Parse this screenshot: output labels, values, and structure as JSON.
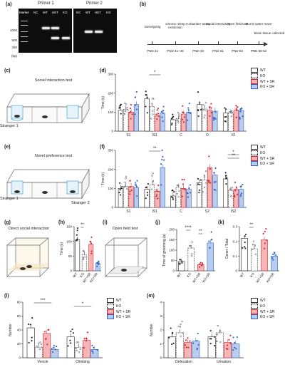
{
  "panel_a": {
    "label": "(a)",
    "primer1": "Primer 1",
    "primer2": "Primer 2",
    "lanes1": [
      "Marker",
      "NC",
      "WT",
      "HET",
      "KO"
    ],
    "lanes2": [
      "NC",
      "WT",
      "HET",
      "KO"
    ],
    "mw": [
      "1000",
      "500",
      "250"
    ],
    "unit": "(bp)"
  },
  "panel_b": {
    "label": "(b)",
    "events": [
      "Genotyping",
      "Chronic sleep restriction",
      "3-chamber assay",
      "Social interaction",
      "Open field test",
      "Morris water maze",
      "Brain tissue collected"
    ],
    "days": [
      "PND 21",
      "PND 21~48",
      "PND 49",
      "PND 51",
      "PND 53",
      "PND 56-62"
    ]
  },
  "panel_c": {
    "label": "(c)",
    "title": "Social interaction test",
    "stranger": "Stranger 1"
  },
  "panel_e": {
    "label": "(e)",
    "title": "Novel preference test",
    "stranger1": "Stranger 1",
    "stranger2": "Stranger 2"
  },
  "panel_g": {
    "label": "(g)",
    "title": "Direct social interaction"
  },
  "panel_i": {
    "label": "(i)",
    "title": "Open field test"
  },
  "legend": [
    "WT",
    "KO",
    "WT + SR",
    "KO + SR"
  ],
  "groups": [
    "WT",
    "KO",
    "WT+SR",
    "KO+SR"
  ],
  "colors": {
    "WT": "#ffffff",
    "KO": "#ffffff",
    "WTSR": "#f4b6b6",
    "KOSR": "#b9ccec",
    "red": "#d9232e",
    "blue": "#2f62c6",
    "black": "#222222"
  },
  "chart_data": [
    {
      "panel": "(d)",
      "type": "bar",
      "ylabel": "Time (s)",
      "ylim": [
        0,
        300
      ],
      "yticks": [
        0,
        100,
        200,
        300
      ],
      "categories": [
        "S1",
        "IS1",
        "C",
        "O",
        "IO"
      ],
      "series": [
        {
          "name": "WT",
          "values": [
            110,
            170,
            60,
            140,
            95
          ]
        },
        {
          "name": "KO",
          "values": [
            115,
            130,
            65,
            120,
            95
          ]
        },
        {
          "name": "WT + SR",
          "values": [
            100,
            80,
            90,
            110,
            110
          ]
        },
        {
          "name": "KO + SR",
          "values": [
            140,
            95,
            100,
            105,
            110
          ]
        }
      ],
      "sig": [
        {
          "cat": 1,
          "text": "*"
        }
      ]
    },
    {
      "panel": "(f)",
      "type": "bar",
      "ylabel": "Time (s)",
      "ylim": [
        0,
        300
      ],
      "yticks": [
        0,
        100,
        200,
        300
      ],
      "categories": [
        "S1",
        "IS1",
        "C",
        "S2",
        "IS2"
      ],
      "series": [
        {
          "name": "WT",
          "values": [
            100,
            95,
            60,
            130,
            150
          ]
        },
        {
          "name": "KO",
          "values": [
            110,
            120,
            105,
            145,
            90
          ]
        },
        {
          "name": "WT + SR",
          "values": [
            110,
            85,
            100,
            210,
            95
          ]
        },
        {
          "name": "KO + SR",
          "values": [
            105,
            210,
            95,
            170,
            95
          ]
        }
      ],
      "sig": [
        {
          "cat": 1,
          "text": "**"
        },
        {
          "cat": 4,
          "text": "*"
        },
        {
          "cat": 4,
          "text": "**"
        }
      ]
    },
    {
      "panel": "(h)",
      "type": "bar",
      "ylabel": "Time (s)",
      "ylim": [
        0,
        150
      ],
      "yticks": [
        0,
        50,
        100,
        150
      ],
      "categories": [
        "WT",
        "KO",
        "WT+SR",
        "KO+SR"
      ],
      "values": [
        105,
        55,
        90,
        25
      ],
      "sig": [
        {
          "text": "**"
        }
      ]
    },
    {
      "panel": "(j)",
      "type": "bar",
      "ylabel": "Time of grooming (s)",
      "ylim": [
        0,
        200
      ],
      "yticks": [
        0,
        50,
        100,
        150,
        200
      ],
      "categories": [
        "WT",
        "KO",
        "WT+SR",
        "KO+SR"
      ],
      "values": [
        45,
        110,
        30,
        135
      ],
      "sig": [
        {
          "text": "****"
        },
        {
          "text": "**"
        }
      ]
    },
    {
      "panel": "(k)",
      "type": "bar",
      "ylabel": "Cener / Total",
      "ylim": [
        0,
        0.3
      ],
      "yticks": [
        0.0,
        0.1,
        0.2,
        0.3
      ],
      "categories": [
        "WT",
        "KO",
        "WT+SR",
        "KO+SR"
      ],
      "values": [
        0.22,
        0.15,
        0.21,
        0.1
      ],
      "sig": [
        {
          "text": "**"
        }
      ]
    },
    {
      "panel": "(l)",
      "type": "bar",
      "ylabel": "Number",
      "ylim": [
        0,
        80
      ],
      "yticks": [
        0,
        20,
        40,
        60,
        80
      ],
      "categories": [
        "Vericle",
        "Climbing"
      ],
      "series": [
        {
          "name": "WT",
          "values": [
            43,
            30
          ]
        },
        {
          "name": "KO",
          "values": [
            15,
            15
          ]
        },
        {
          "name": "WT + SR",
          "values": [
            35,
            25
          ]
        },
        {
          "name": "KO + SR",
          "values": [
            12,
            12
          ]
        }
      ],
      "sig": [
        {
          "cat": 0,
          "text": "***"
        },
        {
          "cat": 1,
          "text": "*"
        }
      ]
    },
    {
      "panel": "(m)",
      "type": "bar",
      "ylabel": "Number",
      "ylim": [
        0,
        4
      ],
      "yticks": [
        0,
        1,
        2,
        3,
        4
      ],
      "categories": [
        "Defecation",
        "Urination"
      ],
      "series": [
        {
          "name": "WT",
          "values": [
            1.5,
            1.5
          ]
        },
        {
          "name": "KO",
          "values": [
            1.8,
            1.8
          ]
        },
        {
          "name": "WT + SR",
          "values": [
            1.1,
            1.1
          ]
        },
        {
          "name": "KO + SR",
          "values": [
            1.2,
            1.0
          ]
        }
      ]
    }
  ]
}
